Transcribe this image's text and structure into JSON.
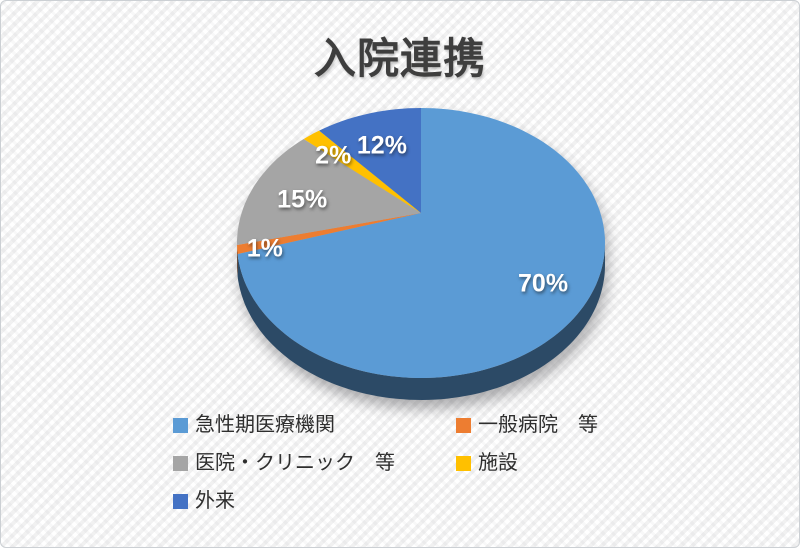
{
  "chart_data": {
    "type": "pie",
    "style": "3d",
    "title": "入院連携",
    "unit": "percent",
    "legend_position": "bottom",
    "grid": false,
    "categories": [
      "急性期医療機関",
      "一般病院　等",
      "医院・クリニック　等",
      "施設",
      "外来"
    ],
    "values": [
      70,
      1,
      15,
      2,
      12
    ],
    "slices": [
      {
        "label": "急性期医療機関",
        "value": 70,
        "pct_label": "70%",
        "color": "#5B9BD5",
        "label_r": 0.73
      },
      {
        "label": "一般病院　等",
        "value": 1,
        "pct_label": "1%",
        "color": "#ED7D31",
        "label_r": 0.85
      },
      {
        "label": "医院・クリニック　等",
        "value": 15,
        "pct_label": "15%",
        "color": "#A5A5A5",
        "label_r": 0.72
      },
      {
        "label": "施設",
        "value": 2,
        "pct_label": "2%",
        "color": "#FFC000",
        "label_r": 0.8
      },
      {
        "label": "外来",
        "value": 12,
        "pct_label": "12%",
        "color": "#4472C4",
        "label_r": 0.75
      }
    ],
    "colors": {
      "title_text": "#3e3e3e",
      "data_label_text": "#ffffff",
      "legend_text": "#2e2e2e",
      "background": "#ffffff",
      "background_stripe": "#ececec"
    }
  }
}
